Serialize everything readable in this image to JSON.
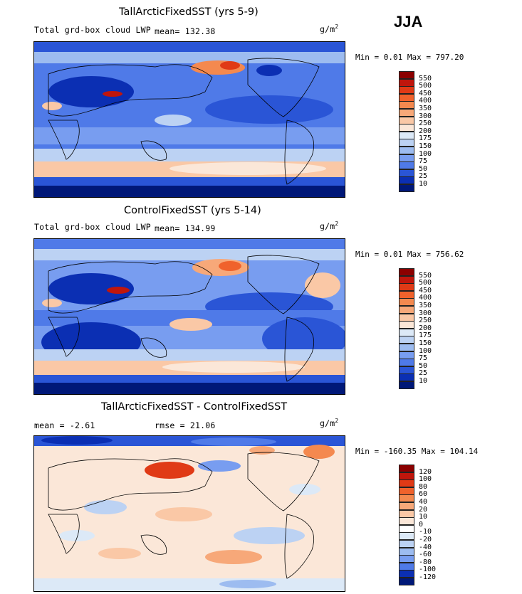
{
  "season_label": "JJA",
  "panels": [
    {
      "title": "TallArcticFixedSST (yrs 5-9)",
      "variable_label": "Total grd-box cloud LWP",
      "mean_text": "mean= 132.38",
      "units_base": "g/m",
      "units_exp": "2",
      "min_text": "Min =   0.01 Max = 797.20",
      "levels": [
        "550",
        "500",
        "450",
        "400",
        "350",
        "300",
        "250",
        "200",
        "175",
        "150",
        "100",
        "75",
        "50",
        "25",
        "10"
      ],
      "colors": [
        "#8b0000",
        "#c0160c",
        "#e03a16",
        "#f0622c",
        "#f4894f",
        "#f7a879",
        "#fac8a6",
        "#fbe7d8",
        "#dce9f7",
        "#bcd2f3",
        "#9dbcf0",
        "#789df0",
        "#4f7ae8",
        "#2a55d6",
        "#0b2fb3",
        "#001878"
      ]
    },
    {
      "title": "ControlFixedSST (yrs 5-14)",
      "variable_label": "Total grd-box cloud LWP",
      "mean_text": "mean= 134.99",
      "units_base": "g/m",
      "units_exp": "2",
      "min_text": "Min =   0.01 Max = 756.62",
      "levels": [
        "550",
        "500",
        "450",
        "400",
        "350",
        "300",
        "250",
        "200",
        "175",
        "150",
        "100",
        "75",
        "50",
        "25",
        "10"
      ],
      "colors": [
        "#8b0000",
        "#c0160c",
        "#e03a16",
        "#f0622c",
        "#f4894f",
        "#f7a879",
        "#fac8a6",
        "#fbe7d8",
        "#dce9f7",
        "#bcd2f3",
        "#9dbcf0",
        "#789df0",
        "#4f7ae8",
        "#2a55d6",
        "#0b2fb3",
        "#001878"
      ]
    },
    {
      "title": "TallArcticFixedSST - ControlFixedSST",
      "mean_text": "mean =   -2.61",
      "rmse_text": "rmse =   21.06",
      "units_base": "g/m",
      "units_exp": "2",
      "min_text": "Min = -160.35 Max = 104.14",
      "levels": [
        "120",
        "100",
        "80",
        "60",
        "40",
        "20",
        "10",
        "0",
        "-10",
        "-20",
        "-40",
        "-60",
        "-80",
        "-100",
        "-120"
      ],
      "colors": [
        "#8b0000",
        "#c0160c",
        "#e03a16",
        "#f0622c",
        "#f4894f",
        "#f7a879",
        "#fac8a6",
        "#fbe7d8",
        "#ffffff",
        "#dce9f7",
        "#bcd2f3",
        "#9dbcf0",
        "#789df0",
        "#4f7ae8",
        "#0b2fb3",
        "#001878"
      ]
    }
  ]
}
